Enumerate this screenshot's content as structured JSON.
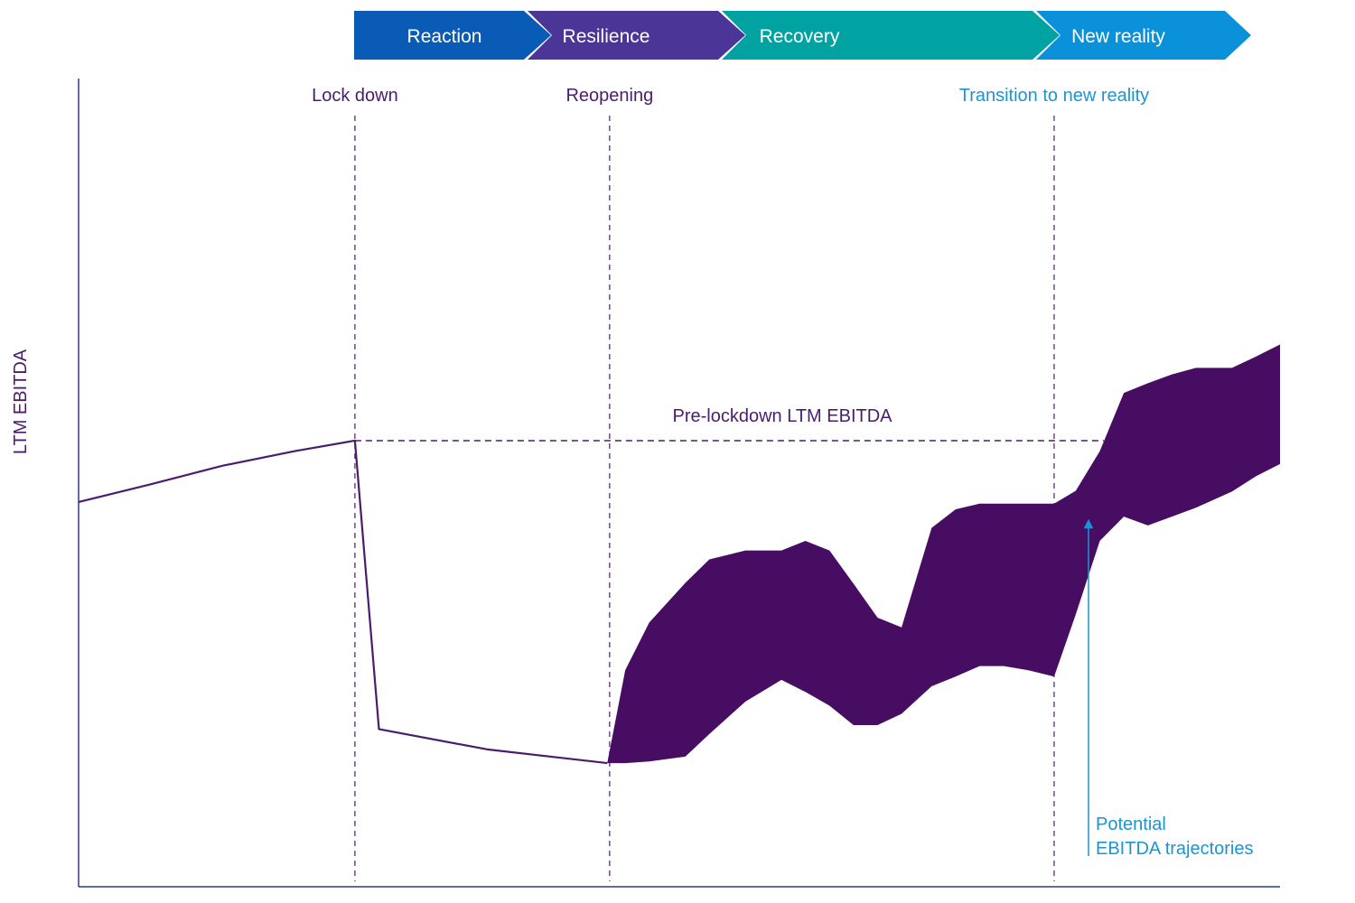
{
  "chart_data": {
    "type": "area",
    "title": "",
    "ylabel": "LTM EBITDA",
    "xlabel": "",
    "xlim": [
      0,
      100
    ],
    "ylim": [
      0,
      100
    ],
    "phases": [
      {
        "label": "Reaction",
        "color": "#0a5bb5"
      },
      {
        "label": "Resilience",
        "color": "#4b3596"
      },
      {
        "label": "Recovery",
        "color": "#00a3a1"
      },
      {
        "label": "New reality",
        "color": "#0a91da"
      }
    ],
    "events": [
      {
        "label": "Lock down",
        "x": 23,
        "color": "#4b1c6b"
      },
      {
        "label": "Reopening",
        "x": 44.2,
        "color": "#4b1c6b"
      },
      {
        "label": "Transition to new reality",
        "x": 81.2,
        "color": "#1a95d4"
      }
    ],
    "reference_line": {
      "label": "Pre-lockdown LTM EBITDA",
      "value": 55.2
    },
    "actual_series": {
      "name": "LTM EBITDA",
      "x": [
        0,
        6,
        12,
        18,
        23,
        25,
        34,
        44
      ],
      "y": [
        47.6,
        49.8,
        52.1,
        53.9,
        55.2,
        19.5,
        17.0,
        15.3
      ]
    },
    "trajectory_band": {
      "name": "Potential EBITDA trajectories",
      "x": [
        44,
        45.5,
        47.5,
        50.5,
        52.5,
        55.5,
        58.5,
        60.5,
        62.5,
        64.5,
        66.5,
        68.5,
        71,
        73,
        75,
        77,
        79,
        81.2,
        83,
        85,
        87,
        89,
        91,
        93,
        96,
        98,
        100
      ],
      "upper": [
        15.3,
        26.8,
        32.7,
        37.6,
        40.5,
        41.6,
        41.6,
        42.8,
        41.6,
        37.5,
        33.3,
        32.1,
        44.4,
        46.7,
        47.4,
        47.4,
        47.4,
        47.4,
        49.0,
        53.9,
        61.1,
        62.3,
        63.4,
        64.2,
        64.2,
        65.6,
        67.1
      ],
      "lower": [
        15.3,
        15.3,
        15.5,
        16.1,
        18.9,
        22.9,
        25.6,
        24.1,
        22.4,
        20.0,
        20.0,
        21.4,
        24.8,
        26.0,
        27.3,
        27.3,
        26.8,
        26.0,
        33.7,
        42.8,
        45.8,
        44.7,
        45.8,
        46.9,
        48.9,
        50.8,
        52.3
      ]
    },
    "annotation": {
      "line1": "Potential",
      "line2": "EBITDA trajectories"
    },
    "colors": {
      "purple": "#4b1c6b",
      "band": "#470d63",
      "axis": "#2d3a8c",
      "annotation": "#1a95d4"
    }
  }
}
